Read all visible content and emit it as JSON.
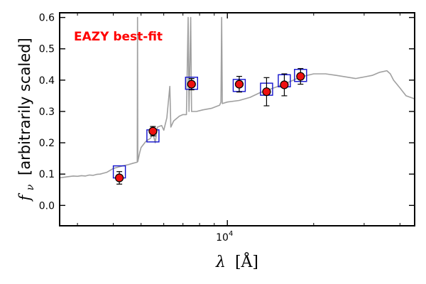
{
  "chart_data": {
    "type": "scatter",
    "annotation": "EAZY best-fit",
    "annotation_color": "#ff0000",
    "xlabel_math": "λ",
    "xlabel_unit": "[Å]",
    "ylabel_math": "f",
    "ylabel_sub": "ν",
    "ylabel_text": "[arbitrarily scaled]",
    "x_scale": "log",
    "xlim": [
      2600,
      45000
    ],
    "ylim": [
      -0.065,
      0.615
    ],
    "y_ticks": [
      0.0,
      0.1,
      0.2,
      0.3,
      0.4,
      0.5,
      0.6
    ],
    "y_tick_labels": [
      "0.0",
      "0.1",
      "0.2",
      "0.3",
      "0.4",
      "0.5",
      "0.6"
    ],
    "x_tick_label": {
      "base": "10",
      "exp": "4",
      "value": 10000
    },
    "x_minor_ticks": [
      3000,
      4000,
      5000,
      6000,
      7000,
      8000,
      9000,
      20000,
      30000,
      40000
    ],
    "grid": false,
    "colors": {
      "model": "#a0a0a0",
      "observed_fill": "#ee1111",
      "observed_edge": "#000000",
      "model_box": "#1111cc"
    },
    "model_spectrum": {
      "name": "model",
      "points": [
        [
          2600,
          0.088
        ],
        [
          2700,
          0.09
        ],
        [
          2800,
          0.092
        ],
        [
          2900,
          0.094
        ],
        [
          3000,
          0.093
        ],
        [
          3100,
          0.095
        ],
        [
          3200,
          0.094
        ],
        [
          3300,
          0.097
        ],
        [
          3400,
          0.096
        ],
        [
          3500,
          0.099
        ],
        [
          3600,
          0.1
        ],
        [
          3700,
          0.103
        ],
        [
          3800,
          0.106
        ],
        [
          3900,
          0.112
        ],
        [
          4000,
          0.118
        ],
        [
          4150,
          0.122
        ],
        [
          4300,
          0.126
        ],
        [
          4500,
          0.13
        ],
        [
          4700,
          0.135
        ],
        [
          4850,
          0.138
        ],
        [
          4860,
          0.6
        ],
        [
          4870,
          0.14
        ],
        [
          4950,
          0.17
        ],
        [
          5000,
          0.185
        ],
        [
          5200,
          0.205
        ],
        [
          5400,
          0.215
        ],
        [
          5500,
          0.23
        ],
        [
          5600,
          0.2
        ],
        [
          5700,
          0.25
        ],
        [
          5900,
          0.255
        ],
        [
          6000,
          0.24
        ],
        [
          6150,
          0.28
        ],
        [
          6300,
          0.38
        ],
        [
          6350,
          0.25
        ],
        [
          6500,
          0.27
        ],
        [
          6800,
          0.285
        ],
        [
          7000,
          0.29
        ],
        [
          7200,
          0.29
        ],
        [
          7300,
          0.6
        ],
        [
          7350,
          0.3
        ],
        [
          7450,
          0.6
        ],
        [
          7500,
          0.3
        ],
        [
          7800,
          0.3
        ],
        [
          8200,
          0.305
        ],
        [
          8800,
          0.31
        ],
        [
          9400,
          0.32
        ],
        [
          9500,
          0.33
        ],
        [
          9550,
          0.6
        ],
        [
          9600,
          0.325
        ],
        [
          10000,
          0.33
        ],
        [
          11000,
          0.335
        ],
        [
          12000,
          0.345
        ],
        [
          13000,
          0.36
        ],
        [
          14000,
          0.37
        ],
        [
          15000,
          0.38
        ],
        [
          16000,
          0.39
        ],
        [
          17000,
          0.4
        ],
        [
          18000,
          0.41
        ],
        [
          20000,
          0.42
        ],
        [
          22000,
          0.42
        ],
        [
          24000,
          0.415
        ],
        [
          26000,
          0.41
        ],
        [
          28000,
          0.405
        ],
        [
          30000,
          0.41
        ],
        [
          32000,
          0.415
        ],
        [
          34000,
          0.425
        ],
        [
          36000,
          0.43
        ],
        [
          37000,
          0.42
        ],
        [
          38000,
          0.4
        ],
        [
          40000,
          0.375
        ],
        [
          42000,
          0.35
        ],
        [
          45000,
          0.34
        ]
      ]
    },
    "observed_photometry": {
      "name": "observed",
      "points": [
        {
          "x": 4200,
          "y": 0.088,
          "err": 0.02
        },
        {
          "x": 5500,
          "y": 0.237,
          "err": 0.015
        },
        {
          "x": 7500,
          "y": 0.387,
          "err": 0.018
        },
        {
          "x": 11000,
          "y": 0.387,
          "err": 0.025
        },
        {
          "x": 13700,
          "y": 0.363,
          "err": 0.045
        },
        {
          "x": 15800,
          "y": 0.385,
          "err": 0.035
        },
        {
          "x": 18000,
          "y": 0.412,
          "err": 0.025
        }
      ]
    },
    "model_boxes": {
      "name": "model photometry",
      "points": [
        {
          "x": 4200,
          "y": 0.107
        },
        {
          "x": 5500,
          "y": 0.222
        },
        {
          "x": 7500,
          "y": 0.39
        },
        {
          "x": 11000,
          "y": 0.383
        },
        {
          "x": 13700,
          "y": 0.371
        },
        {
          "x": 15800,
          "y": 0.398
        },
        {
          "x": 18000,
          "y": 0.415
        }
      ]
    }
  }
}
